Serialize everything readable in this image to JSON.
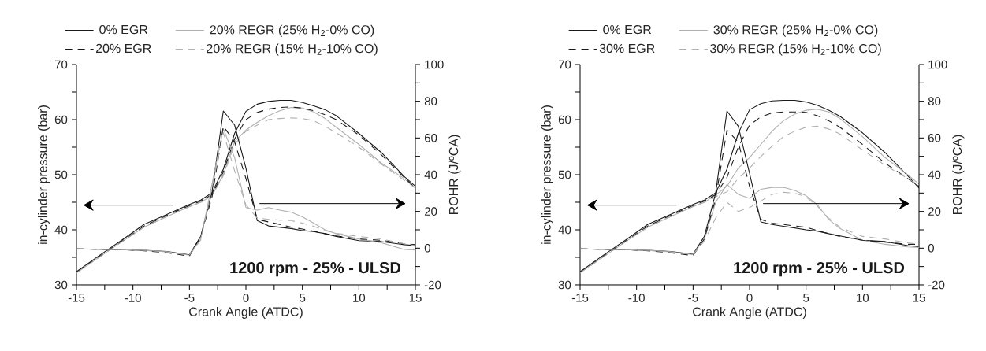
{
  "chart_data": [
    {
      "type": "line",
      "xlabel": "Crank Angle (ATDC)",
      "ylabel": "in-cylinder pressure (bar)",
      "y2label": "ROHR (J/ºCA)",
      "x": [
        -15,
        -13,
        -11,
        -9,
        -7,
        -5,
        -4,
        -3,
        -2,
        -1,
        0,
        1,
        2,
        3,
        4,
        5,
        6,
        7,
        8,
        10,
        12,
        14,
        15
      ],
      "xlim": [
        -15,
        15
      ],
      "ylim": [
        30,
        70
      ],
      "y2lim": [
        -20,
        100
      ],
      "xticks": [
        -15,
        {
          "value": -12.5,
          "label": null
        },
        -10,
        {
          "value": -7.5,
          "label": null
        },
        -5,
        {
          "value": -2.5,
          "label": null
        },
        0,
        {
          "value": 2.5,
          "label": null
        },
        5,
        {
          "value": 7.5,
          "label": null
        },
        10,
        {
          "value": 12.5,
          "label": null
        },
        15
      ],
      "yticks": [
        30,
        {
          "value": 35,
          "label": null
        },
        40,
        {
          "value": 45,
          "label": null
        },
        50,
        {
          "value": 55,
          "label": null
        },
        60,
        {
          "value": 65,
          "label": null
        },
        70
      ],
      "y2ticks": [
        -20,
        {
          "value": -10,
          "label": null
        },
        0,
        {
          "value": 10,
          "label": null
        },
        20,
        {
          "value": 30,
          "label": null
        },
        40,
        {
          "value": 50,
          "label": null
        },
        60,
        {
          "value": 70,
          "label": null
        },
        80,
        {
          "value": 90,
          "label": null
        },
        100
      ],
      "legend": "top",
      "grid": false,
      "annotations": [
        "1200 rpm - 25% - ULSD"
      ],
      "series": [
        {
          "name": "0% EGR",
          "color": "#1a1a1a",
          "line_style": "solid",
          "values": [
            32.4,
            35.3,
            38.1,
            41.0,
            42.8,
            44.6,
            45.4,
            46.7,
            51.0,
            57.5,
            61.5,
            62.8,
            63.3,
            63.5,
            63.5,
            63.1,
            62.5,
            61.8,
            60.7,
            57.5,
            54.0,
            49.7,
            47.9
          ]
        },
        {
          "name": "20% REGR (25% H$_{2}$-0% CO)",
          "color": "#b0b0b0",
          "line_style": "solid",
          "values": [
            32.2,
            35.0,
            37.8,
            40.5,
            42.4,
            44.2,
            45.0,
            46.2,
            50.0,
            56.0,
            58.1,
            59.5,
            60.7,
            61.6,
            62.2,
            62.1,
            61.4,
            60.2,
            58.6,
            55.5,
            52.1,
            49.3,
            47.6
          ]
        },
        {
          "name": "20% EGR",
          "color": "#1a1a1a",
          "line_style": "dashed",
          "values": [
            32.3,
            35.1,
            37.9,
            40.7,
            42.6,
            44.4,
            45.2,
            46.4,
            50.5,
            56.5,
            60.0,
            61.3,
            61.9,
            62.2,
            62.3,
            62.1,
            61.6,
            60.9,
            60.0,
            57.2,
            53.6,
            49.5,
            47.6
          ]
        },
        {
          "name": "20% REGR (15% H$_{2}$-10% CO)",
          "color": "#b0b0b0",
          "line_style": "dashed",
          "values": [
            32.2,
            35.0,
            37.8,
            40.5,
            42.4,
            44.2,
            45.0,
            46.2,
            49.8,
            55.5,
            57.9,
            59.0,
            60.0,
            60.2,
            60.3,
            60.2,
            59.8,
            58.8,
            57.6,
            55.0,
            51.9,
            49.0,
            47.6
          ]
        },
        {
          "color": "#1a1a1a",
          "line_style": "solid",
          "axis": "y2",
          "values": [
            -0.4,
            -0.6,
            -0.8,
            -1.2,
            -1.8,
            -3.6,
            6.4,
            30.7,
            74.7,
            67.0,
            43.6,
            15.0,
            12.1,
            11.4,
            10.7,
            9.6,
            9.0,
            7.9,
            6.4,
            4.1,
            3.6,
            1.9,
            1.4
          ]
        },
        {
          "color": "#b0b0b0",
          "line_style": "solid",
          "axis": "y2",
          "values": [
            -0.4,
            -0.6,
            -0.8,
            -1.2,
            -2.0,
            -3.8,
            5.0,
            35.0,
            65.0,
            49.3,
            22.1,
            20.7,
            22.1,
            20.7,
            19.6,
            17.1,
            13.6,
            10.0,
            7.9,
            5.0,
            2.9,
            -0.7,
            -1.0
          ]
        },
        {
          "color": "#1a1a1a",
          "line_style": "dashed",
          "axis": "y2",
          "values": [
            -0.4,
            -0.6,
            -0.8,
            -1.4,
            -2.5,
            -4.3,
            6.4,
            27.9,
            66.4,
            57.9,
            37.9,
            15.7,
            14.3,
            12.9,
            11.5,
            10.4,
            9.2,
            7.9,
            6.7,
            5.0,
            4.3,
            2.4,
            1.9
          ]
        },
        {
          "color": "#b0b0b0",
          "line_style": "dashed",
          "axis": "y2",
          "values": [
            -0.4,
            -0.6,
            -0.8,
            -1.2,
            -2.0,
            -3.8,
            4.5,
            33.0,
            62.9,
            42.1,
            23.6,
            16.4,
            15.7,
            15.3,
            15.0,
            13.6,
            11.9,
            9.6,
            8.1,
            6.4,
            5.0,
            2.4,
            1.4
          ]
        }
      ]
    },
    {
      "type": "line",
      "xlabel": "Crank Angle (ATDC)",
      "ylabel": "in-cylinder pressure (bar)",
      "y2label": "ROHR (J/ºCA)",
      "x": [
        -15,
        -13,
        -11,
        -9,
        -7,
        -5,
        -4,
        -3,
        -2,
        -1,
        0,
        1,
        2,
        3,
        4,
        5,
        6,
        7,
        8,
        10,
        12,
        14,
        15
      ],
      "xlim": [
        -15,
        15
      ],
      "ylim": [
        30,
        70
      ],
      "y2lim": [
        -20,
        100
      ],
      "xticks": [
        -15,
        {
          "value": -12.5,
          "label": null
        },
        -10,
        {
          "value": -7.5,
          "label": null
        },
        -5,
        {
          "value": -2.5,
          "label": null
        },
        0,
        {
          "value": 2.5,
          "label": null
        },
        5,
        {
          "value": 7.5,
          "label": null
        },
        10,
        {
          "value": 12.5,
          "label": null
        },
        15
      ],
      "yticks": [
        30,
        {
          "value": 35,
          "label": null
        },
        40,
        {
          "value": 45,
          "label": null
        },
        50,
        {
          "value": 55,
          "label": null
        },
        60,
        {
          "value": 65,
          "label": null
        },
        70
      ],
      "y2ticks": [
        -20,
        {
          "value": -10,
          "label": null
        },
        0,
        {
          "value": 10,
          "label": null
        },
        20,
        {
          "value": 30,
          "label": null
        },
        40,
        {
          "value": 50,
          "label": null
        },
        60,
        {
          "value": 70,
          "label": null
        },
        80,
        {
          "value": 90,
          "label": null
        },
        100
      ],
      "legend": "top",
      "grid": false,
      "annotations": [
        "1200 rpm - 25% - ULSD"
      ],
      "series": [
        {
          "name": "0% EGR",
          "color": "#1a1a1a",
          "line_style": "solid",
          "values": [
            32.4,
            35.3,
            38.1,
            41.0,
            42.8,
            44.6,
            45.4,
            46.7,
            51.0,
            57.5,
            61.8,
            62.9,
            63.4,
            63.5,
            63.5,
            63.2,
            62.6,
            61.7,
            60.6,
            57.6,
            54.0,
            49.8,
            47.6
          ]
        },
        {
          "name": "30% REGR (25% H$_{2}$-0% CO)",
          "color": "#b0b0b0",
          "line_style": "solid",
          "values": [
            32.2,
            35.0,
            37.8,
            40.5,
            42.4,
            44.2,
            45.0,
            46.3,
            47.9,
            51.2,
            53.1,
            55.5,
            57.9,
            59.8,
            61.0,
            61.7,
            61.9,
            61.4,
            60.2,
            56.9,
            53.1,
            50.0,
            48.3
          ]
        },
        {
          "name": "30% EGR",
          "color": "#1a1a1a",
          "line_style": "dashed",
          "values": [
            32.3,
            35.1,
            37.9,
            40.7,
            42.6,
            44.4,
            45.2,
            46.4,
            49.5,
            55.0,
            59.0,
            60.5,
            61.2,
            61.4,
            61.4,
            61.3,
            60.7,
            59.8,
            58.6,
            55.5,
            52.1,
            49.3,
            47.9
          ]
        },
        {
          "name": "30% REGR (15% H$_{2}$-10% CO)",
          "color": "#b0b0b0",
          "line_style": "dashed",
          "values": [
            32.2,
            35.0,
            37.8,
            40.5,
            42.4,
            44.2,
            45.0,
            46.0,
            46.9,
            49.3,
            51.2,
            53.3,
            55.2,
            56.9,
            57.9,
            58.6,
            58.8,
            58.3,
            57.4,
            54.5,
            51.7,
            49.3,
            48.1
          ]
        },
        {
          "color": "#1a1a1a",
          "line_style": "solid",
          "axis": "y2",
          "values": [
            -0.4,
            -0.6,
            -0.8,
            -1.2,
            -1.8,
            -3.3,
            6.4,
            30.0,
            74.7,
            66.4,
            40.7,
            14.3,
            12.9,
            11.9,
            11.0,
            10.0,
            9.3,
            7.9,
            6.7,
            4.3,
            3.6,
            1.4,
            0.7
          ]
        },
        {
          "color": "#b0b0b0",
          "line_style": "solid",
          "axis": "y2",
          "values": [
            -0.4,
            -0.6,
            -0.8,
            -1.2,
            -2.0,
            -3.5,
            5.0,
            25.0,
            34.7,
            29.3,
            27.1,
            32.1,
            33.1,
            33.1,
            31.4,
            28.6,
            23.6,
            15.7,
            10.7,
            4.3,
            2.1,
            0.7,
            0.4
          ]
        },
        {
          "color": "#1a1a1a",
          "line_style": "dashed",
          "axis": "y2",
          "values": [
            -0.4,
            -0.6,
            -0.8,
            -1.4,
            -2.5,
            -4.0,
            5.0,
            27.0,
            64.3,
            57.9,
            33.6,
            15.7,
            13.6,
            12.9,
            12.1,
            11.4,
            9.6,
            7.9,
            6.4,
            4.3,
            3.3,
            2.1,
            2.1
          ]
        },
        {
          "color": "#b0b0b0",
          "line_style": "dashed",
          "axis": "y2",
          "values": [
            -0.4,
            -0.6,
            -0.8,
            -1.2,
            -2.0,
            -3.5,
            4.0,
            16.4,
            25.0,
            20.0,
            22.1,
            25.7,
            29.3,
            30.4,
            30.0,
            27.9,
            22.9,
            16.4,
            11.4,
            6.4,
            5.0,
            2.9,
            2.1
          ]
        }
      ]
    }
  ]
}
